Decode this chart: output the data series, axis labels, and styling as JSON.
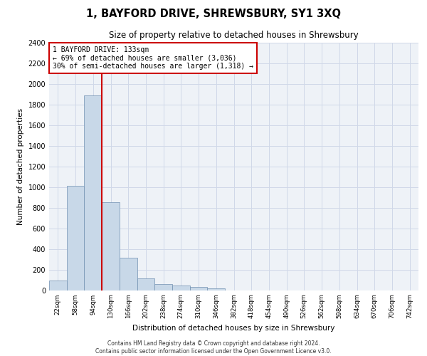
{
  "title": "1, BAYFORD DRIVE, SHREWSBURY, SY1 3XQ",
  "subtitle": "Size of property relative to detached houses in Shrewsbury",
  "xlabel": "Distribution of detached houses by size in Shrewsbury",
  "ylabel": "Number of detached properties",
  "bar_color": "#c8d8e8",
  "bar_edge_color": "#7090b0",
  "grid_color": "#d0d8e8",
  "background_color": "#eef2f7",
  "vline_color": "#cc0000",
  "categories": [
    "22sqm",
    "58sqm",
    "94sqm",
    "130sqm",
    "166sqm",
    "202sqm",
    "238sqm",
    "274sqm",
    "310sqm",
    "346sqm",
    "382sqm",
    "418sqm",
    "454sqm",
    "490sqm",
    "526sqm",
    "562sqm",
    "598sqm",
    "634sqm",
    "670sqm",
    "706sqm",
    "742sqm"
  ],
  "values": [
    95,
    1010,
    1890,
    855,
    315,
    115,
    57,
    47,
    28,
    15,
    0,
    0,
    0,
    0,
    0,
    0,
    0,
    0,
    0,
    0,
    0
  ],
  "annotation_line1": "1 BAYFORD DRIVE: 133sqm",
  "annotation_line2": "← 69% of detached houses are smaller (3,036)",
  "annotation_line3": "30% of semi-detached houses are larger (1,318) →",
  "vline_position": 3,
  "ylim": [
    0,
    2400
  ],
  "yticks": [
    0,
    200,
    400,
    600,
    800,
    1000,
    1200,
    1400,
    1600,
    1800,
    2000,
    2200,
    2400
  ],
  "footer_line1": "Contains HM Land Registry data © Crown copyright and database right 2024.",
  "footer_line2": "Contains public sector information licensed under the Open Government Licence v3.0."
}
